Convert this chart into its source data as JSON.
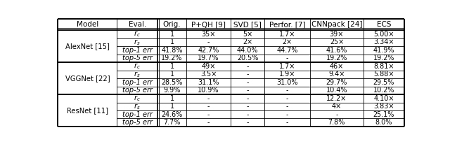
{
  "col_headers": [
    "Model",
    "Eval.",
    "Orig.",
    "P+QH [9]",
    "SVD [5]",
    "Perfor. [7]",
    "CNNpack [24]",
    "ECS"
  ],
  "rows": [
    {
      "model": "AlexNet [15]",
      "evals": [
        "rc",
        "rs",
        "top-1 err",
        "top-5 err"
      ],
      "orig": [
        "1",
        "1",
        "41.8%",
        "19.2%"
      ],
      "pqh": [
        "35×",
        "-",
        "42.7%",
        "19.7%"
      ],
      "svd": [
        "5×",
        "2×",
        "44.0%",
        "20.5%"
      ],
      "perfor": [
        "1.7×",
        "2×",
        "44.7%",
        "-"
      ],
      "cnnpack": [
        "39×",
        "25×",
        "41.6%",
        "19.2%"
      ],
      "ecs": [
        "5.00×",
        "3.34×",
        "41.9%",
        "19.2%"
      ]
    },
    {
      "model": "VGGNet [22]",
      "evals": [
        "rc",
        "rs",
        "top-1 err",
        "top-5 err"
      ],
      "orig": [
        "1",
        "1",
        "28.5%",
        "9.9%"
      ],
      "pqh": [
        "49×",
        "3.5×",
        "31.1%",
        "10.9%"
      ],
      "svd": [
        "-",
        "-",
        "-",
        "-"
      ],
      "perfor": [
        "1.7×",
        "1.9×",
        "31.0%",
        "-"
      ],
      "cnnpack": [
        "46×",
        "9.4×",
        "29.7%",
        "10.4%"
      ],
      "ecs": [
        "8.81×",
        "5.88×",
        "29.5%",
        "10.2%"
      ]
    },
    {
      "model": "ResNet [11]",
      "evals": [
        "rc",
        "rs",
        "top-1 err",
        "top-5 err"
      ],
      "orig": [
        "1",
        "1",
        "24.6%",
        "7.7%"
      ],
      "pqh": [
        "-",
        "-",
        "-",
        "-"
      ],
      "svd": [
        "-",
        "-",
        "-",
        "-"
      ],
      "perfor": [
        "-",
        "-",
        "-",
        "-"
      ],
      "cnnpack": [
        "12.2×",
        "4×",
        "-",
        "7.8%"
      ],
      "ecs": [
        "4.10×",
        "3.83×",
        "25.1%",
        "8.0%"
      ]
    }
  ],
  "figsize": [
    6.4,
    2.06
  ],
  "dpi": 100,
  "font_size": 7.2,
  "bg_color": "#ffffff"
}
